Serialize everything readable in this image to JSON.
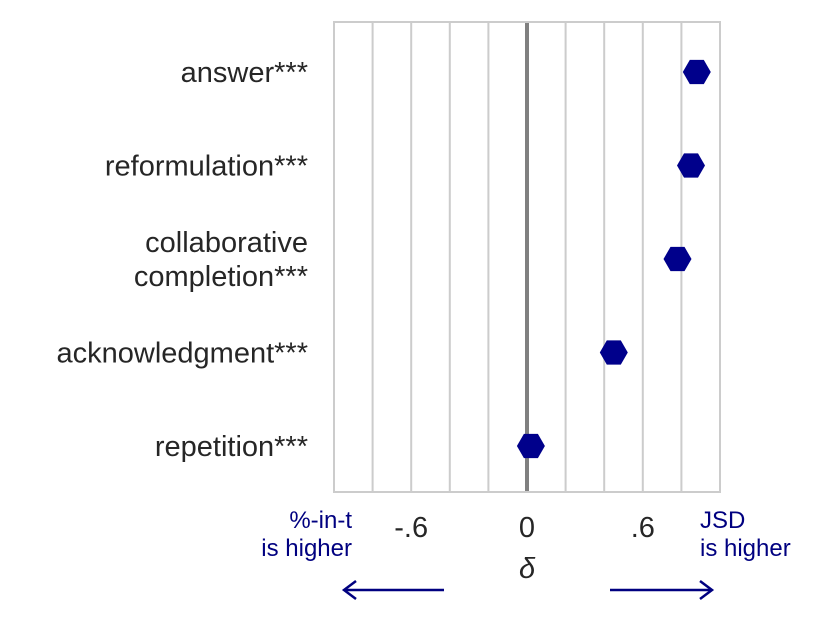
{
  "chart_data": {
    "type": "scatter",
    "categories": [
      "answer***",
      "reformulation***",
      "collaborative completion***",
      "acknowledgment***",
      "repetition***"
    ],
    "category_lines": [
      [
        "answer***"
      ],
      [
        "reformulation***"
      ],
      [
        "collaborative",
        "completion***"
      ],
      [
        "acknowledgment***"
      ],
      [
        "repetition***"
      ]
    ],
    "values": [
      0.88,
      0.85,
      0.78,
      0.45,
      0.02
    ],
    "xlim": [
      -1.0,
      1.0
    ],
    "xticks": [
      -0.6,
      0,
      0.6
    ],
    "xtick_labels": [
      "-.6",
      "0",
      ".6"
    ],
    "xlabel": "δ",
    "grid": true,
    "reference_line": 0,
    "left_note": [
      "%-in-t",
      "is higher"
    ],
    "right_note": [
      "JSD",
      "is higher"
    ],
    "marker": "hexagon",
    "colors": {
      "marker": "#00008b",
      "note": "#000080",
      "grid": "#cccccc",
      "zero": "#808080"
    }
  }
}
